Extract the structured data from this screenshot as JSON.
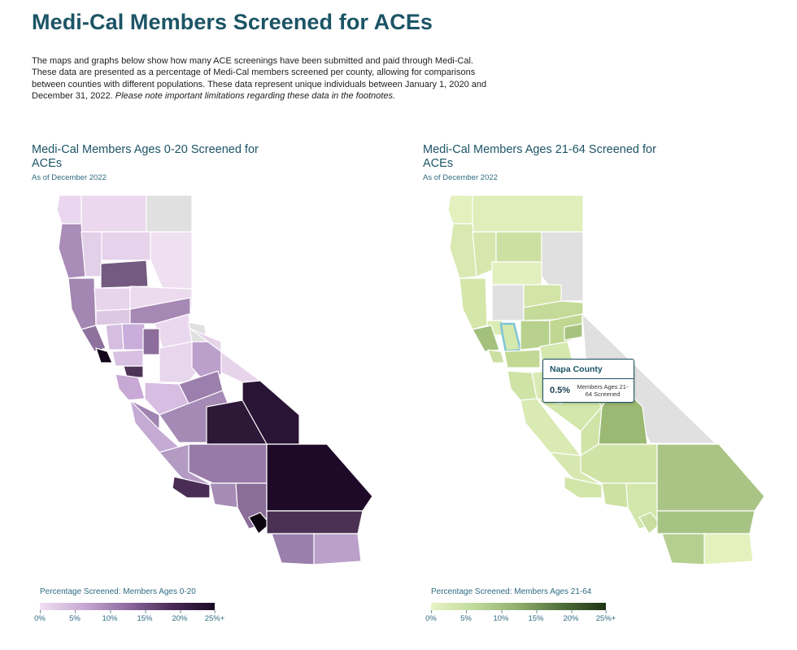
{
  "page": {
    "title": "Medi-Cal Members Screened for ACEs",
    "intro_text": "The maps and graphs below show how many ACE screenings have been submitted and paid through Medi-Cal. These data are presented as a percentage of Medi-Cal members screened per county, allowing for comparisons between counties with different populations. These data represent unique individuals between January 1, 2020 and December 31, 2022. ",
    "intro_note": "Please note important limitations regarding these data in the footnotes."
  },
  "maps": [
    {
      "title": "Medi-Cal Members Ages 0-20 Screened for ACEs",
      "subtitle": "As of December 2022",
      "legend_title": "Percentage Screened: Members Ages 0-20",
      "legend_ticks": [
        "0%",
        "5%",
        "10%",
        "15%",
        "20%",
        "25%+"
      ],
      "color_scale": [
        "#efe0f1",
        "#1a0a25"
      ],
      "no_data_color": "#e0e0e0"
    },
    {
      "title": "Medi-Cal Members Ages 21-64 Screened for ACEs",
      "subtitle": "As of December 2022",
      "legend_title": "Percentage Screened: Members Ages 21-64",
      "legend_ticks": [
        "0%",
        "5%",
        "10%",
        "15%",
        "20%",
        "25%+"
      ],
      "color_scale": [
        "#e9f4c4",
        "#1d3314"
      ],
      "no_data_color": "#e0e0e0"
    }
  ],
  "tooltip": {
    "county": "Napa County",
    "value": "0.5%",
    "label": "Members Ages 21-64 Screened",
    "highlight_color": "#7fc4d6"
  }
}
